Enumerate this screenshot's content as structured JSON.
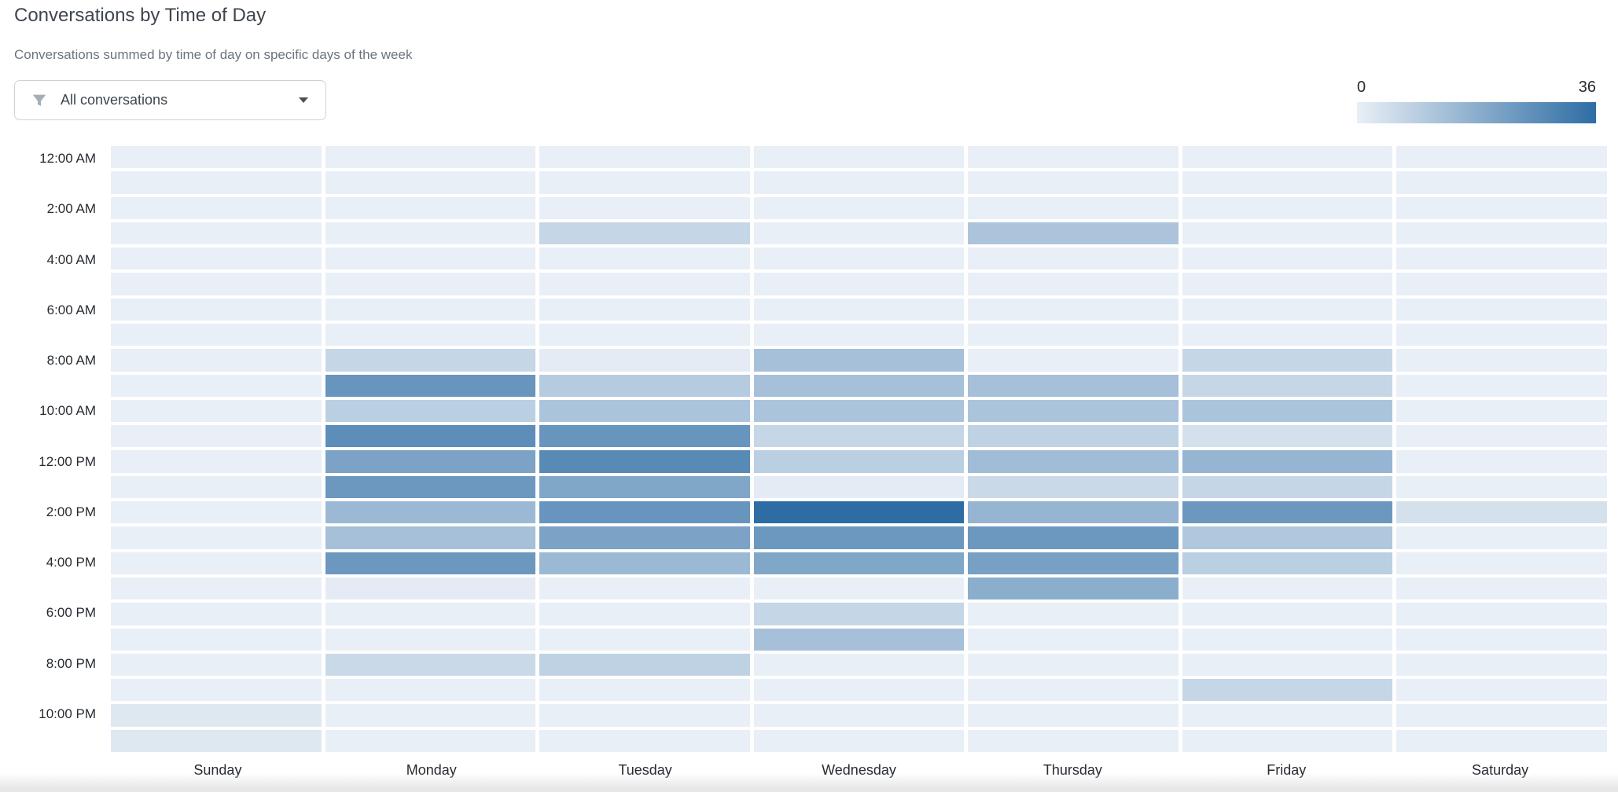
{
  "header": {
    "title": "Conversations by Time of Day",
    "subtitle": "Conversations summed by time of day on specific days of the week"
  },
  "filter": {
    "label": "All conversations",
    "icon": "funnel-icon",
    "caret_icon": "chevron-down-icon"
  },
  "legend": {
    "min_label": "0",
    "max_label": "36"
  },
  "chart_data": {
    "type": "heatmap",
    "title": "Conversations by Time of Day",
    "subtitle": "Conversations summed by time of day on specific days of the week",
    "x_categories": [
      "Sunday",
      "Monday",
      "Tuesday",
      "Wednesday",
      "Thursday",
      "Friday",
      "Saturday"
    ],
    "y_categories": [
      "12 AM",
      "1 AM",
      "2 AM",
      "3 AM",
      "4 AM",
      "5 AM",
      "6 AM",
      "7 AM",
      "8 AM",
      "9 AM",
      "10 AM",
      "11 AM",
      "12 PM",
      "1 PM",
      "2 PM",
      "3 PM",
      "4 PM",
      "5 PM",
      "6 PM",
      "7 PM",
      "8 PM",
      "9 PM",
      "10 PM",
      "11 PM"
    ],
    "y_tick_labels": [
      "12:00 AM",
      "2:00 AM",
      "4:00 AM",
      "6:00 AM",
      "8:00 AM",
      "10:00 AM",
      "12:00 PM",
      "2:00 PM",
      "4:00 PM",
      "6:00 PM",
      "8:00 PM",
      "10:00 PM"
    ],
    "y_tick_every_n_rows": 2,
    "value_range": [
      0,
      36
    ],
    "colorscale": [
      "#e9eff6",
      "#2e6da4"
    ],
    "legend_position": "top-right",
    "grid": false,
    "values_note": "rows are hours 12AM-11PM, columns are days Sunday-Saturday, values estimated from color scale 0-36",
    "values": [
      [
        0,
        0,
        0,
        0,
        0,
        0,
        0
      ],
      [
        0,
        0,
        0,
        0,
        0,
        0,
        0
      ],
      [
        0,
        0,
        0,
        0,
        0,
        0,
        0
      ],
      [
        0,
        0,
        7,
        0,
        12,
        0,
        0
      ],
      [
        0,
        0,
        0,
        0,
        0,
        0,
        0
      ],
      [
        0,
        0,
        0,
        0,
        0,
        0,
        0
      ],
      [
        0,
        0,
        0,
        0,
        0,
        0,
        0
      ],
      [
        0,
        0,
        0,
        0,
        0,
        0,
        0
      ],
      [
        0,
        7,
        1,
        13,
        0,
        7,
        0
      ],
      [
        0,
        25,
        10,
        13,
        13,
        7,
        0
      ],
      [
        0,
        9,
        12,
        12,
        12,
        12,
        0
      ],
      [
        0,
        27,
        25,
        7,
        8,
        4,
        0
      ],
      [
        0,
        21,
        28,
        9,
        14,
        16,
        0
      ],
      [
        0,
        24,
        20,
        1,
        6,
        7,
        0
      ],
      [
        0,
        15,
        25,
        36,
        16,
        24,
        4
      ],
      [
        0,
        13,
        21,
        24,
        24,
        11,
        0
      ],
      [
        0,
        24,
        15,
        20,
        22,
        9,
        0
      ],
      [
        0,
        1,
        0,
        0,
        18,
        0,
        0
      ],
      [
        0,
        0,
        0,
        7,
        0,
        0,
        0
      ],
      [
        0,
        0,
        0,
        13,
        0,
        0,
        0
      ],
      [
        0,
        6,
        8,
        0,
        0,
        0,
        0
      ],
      [
        0,
        0,
        0,
        0,
        0,
        7,
        0
      ],
      [
        2,
        0,
        0,
        0,
        0,
        0,
        0
      ],
      [
        2,
        0,
        0,
        0,
        0,
        0,
        0
      ]
    ]
  }
}
